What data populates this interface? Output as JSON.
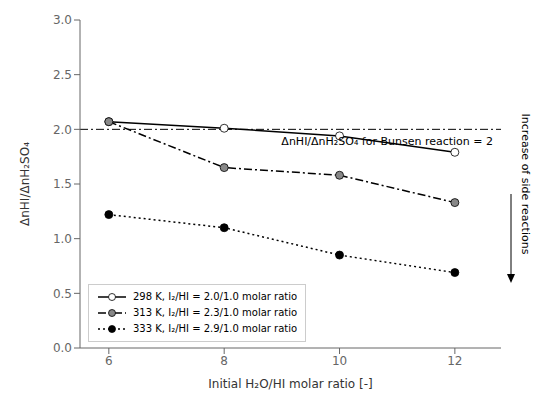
{
  "chart_data": {
    "type": "line",
    "x_label": "Initial H₂O/HI molar ratio [-]",
    "y_label": "ΔnHI/ΔnH₂SO₄",
    "x": [
      6,
      8,
      10,
      12
    ],
    "series": [
      {
        "name": "298 K, I₂/HI = 2.0/1.0 molar ratio",
        "color": "black",
        "marker": "circle",
        "marker_color": "white",
        "line_style": "solid",
        "values": [
          2.07,
          2.01,
          1.94,
          1.79
        ]
      },
      {
        "name": "313 K, I₂/HI = 2.3/1.0 molar ratio",
        "color": "black",
        "marker": "circle",
        "marker_color": "#888888",
        "line_style": "dashdot",
        "values": [
          2.07,
          1.65,
          1.58,
          1.33
        ]
      },
      {
        "name": "333 K, I₂/HI = 2.9/1.0 molar ratio",
        "color": "black",
        "marker": "circle",
        "marker_color": "black",
        "line_style": "dotted",
        "values": [
          1.22,
          1.1,
          0.85,
          0.69
        ]
      }
    ],
    "hline": {
      "y": 2.0,
      "color": "black",
      "line_style": "dashdot"
    },
    "annotations": [
      "ΔnHI/ΔnH₂SO₄ for Bunsen reaction = 2",
      "Increase of side reactions"
    ],
    "xlim": [
      5.5,
      12.8
    ],
    "xticks": [
      6,
      8,
      10,
      12
    ],
    "ylim": [
      0.0,
      3.0
    ],
    "yticks": [
      {
        "value": 0.0,
        "label": "0.0"
      },
      0.5,
      {
        "value": 1.0,
        "label": "1.0"
      },
      1.5,
      {
        "value": 2.0,
        "label": "2.0"
      },
      2.5,
      {
        "value": 3.0,
        "label": "3.0"
      }
    ],
    "grid": false,
    "legend": "lower left"
  }
}
